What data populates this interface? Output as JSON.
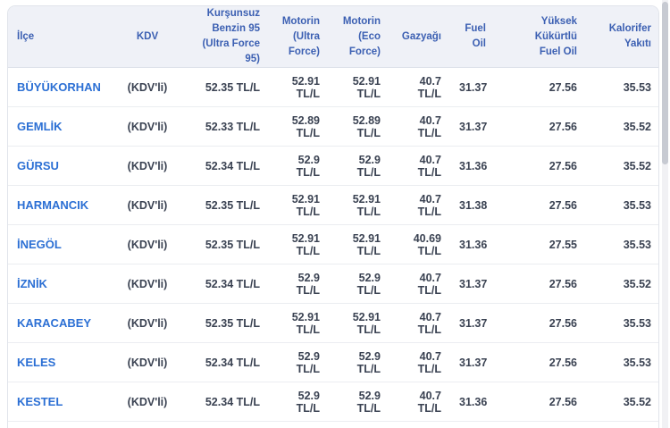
{
  "colors": {
    "header_background": "#eff1f7",
    "header_text": "#3b5fb2",
    "district_link": "#2b6fd4",
    "value_text": "#3a4252",
    "row_divider": "#ebedf1"
  },
  "table": {
    "columns": [
      "İlçe",
      "KDV",
      "Kurşunsuz\nBenzin 95\n(Ultra Force 95)",
      "Motorin\n(Ultra\nForce)",
      "Motorin\n(Eco Force)",
      "Gazyağı",
      "Fuel\nOil",
      "Yüksek Kükürtlü\nFuel Oil",
      "Kalorifer\nYakıtı"
    ],
    "rows": [
      {
        "name": "BÜYÜKORHAN",
        "kdv": "(KDV'li)",
        "values": [
          "52.35 TL/L",
          "52.91 TL/L",
          "52.91 TL/L",
          "40.7 TL/L",
          "31.37",
          "27.56",
          "35.53"
        ]
      },
      {
        "name": "GEMLİK",
        "kdv": "(KDV'li)",
        "values": [
          "52.33 TL/L",
          "52.89 TL/L",
          "52.89 TL/L",
          "40.7 TL/L",
          "31.37",
          "27.56",
          "35.52"
        ]
      },
      {
        "name": "GÜRSU",
        "kdv": "(KDV'li)",
        "values": [
          "52.34 TL/L",
          "52.9 TL/L",
          "52.9 TL/L",
          "40.7 TL/L",
          "31.36",
          "27.56",
          "35.52"
        ]
      },
      {
        "name": "HARMANCIK",
        "kdv": "(KDV'li)",
        "values": [
          "52.35 TL/L",
          "52.91 TL/L",
          "52.91 TL/L",
          "40.7 TL/L",
          "31.38",
          "27.56",
          "35.53"
        ]
      },
      {
        "name": "İNEGÖL",
        "kdv": "(KDV'li)",
        "values": [
          "52.35 TL/L",
          "52.91 TL/L",
          "52.91 TL/L",
          "40.69 TL/L",
          "31.36",
          "27.55",
          "35.53"
        ]
      },
      {
        "name": "İZNİK",
        "kdv": "(KDV'li)",
        "values": [
          "52.34 TL/L",
          "52.9 TL/L",
          "52.9 TL/L",
          "40.7 TL/L",
          "31.37",
          "27.56",
          "35.52"
        ]
      },
      {
        "name": "KARACABEY",
        "kdv": "(KDV'li)",
        "values": [
          "52.35 TL/L",
          "52.91 TL/L",
          "52.91 TL/L",
          "40.7 TL/L",
          "31.37",
          "27.56",
          "35.53"
        ]
      },
      {
        "name": "KELES",
        "kdv": "(KDV'li)",
        "values": [
          "52.34 TL/L",
          "52.9 TL/L",
          "52.9 TL/L",
          "40.7 TL/L",
          "31.37",
          "27.56",
          "35.53"
        ]
      },
      {
        "name": "KESTEL",
        "kdv": "(KDV'li)",
        "values": [
          "52.34 TL/L",
          "52.9 TL/L",
          "52.9 TL/L",
          "40.7 TL/L",
          "31.36",
          "27.56",
          "35.52"
        ]
      }
    ]
  }
}
